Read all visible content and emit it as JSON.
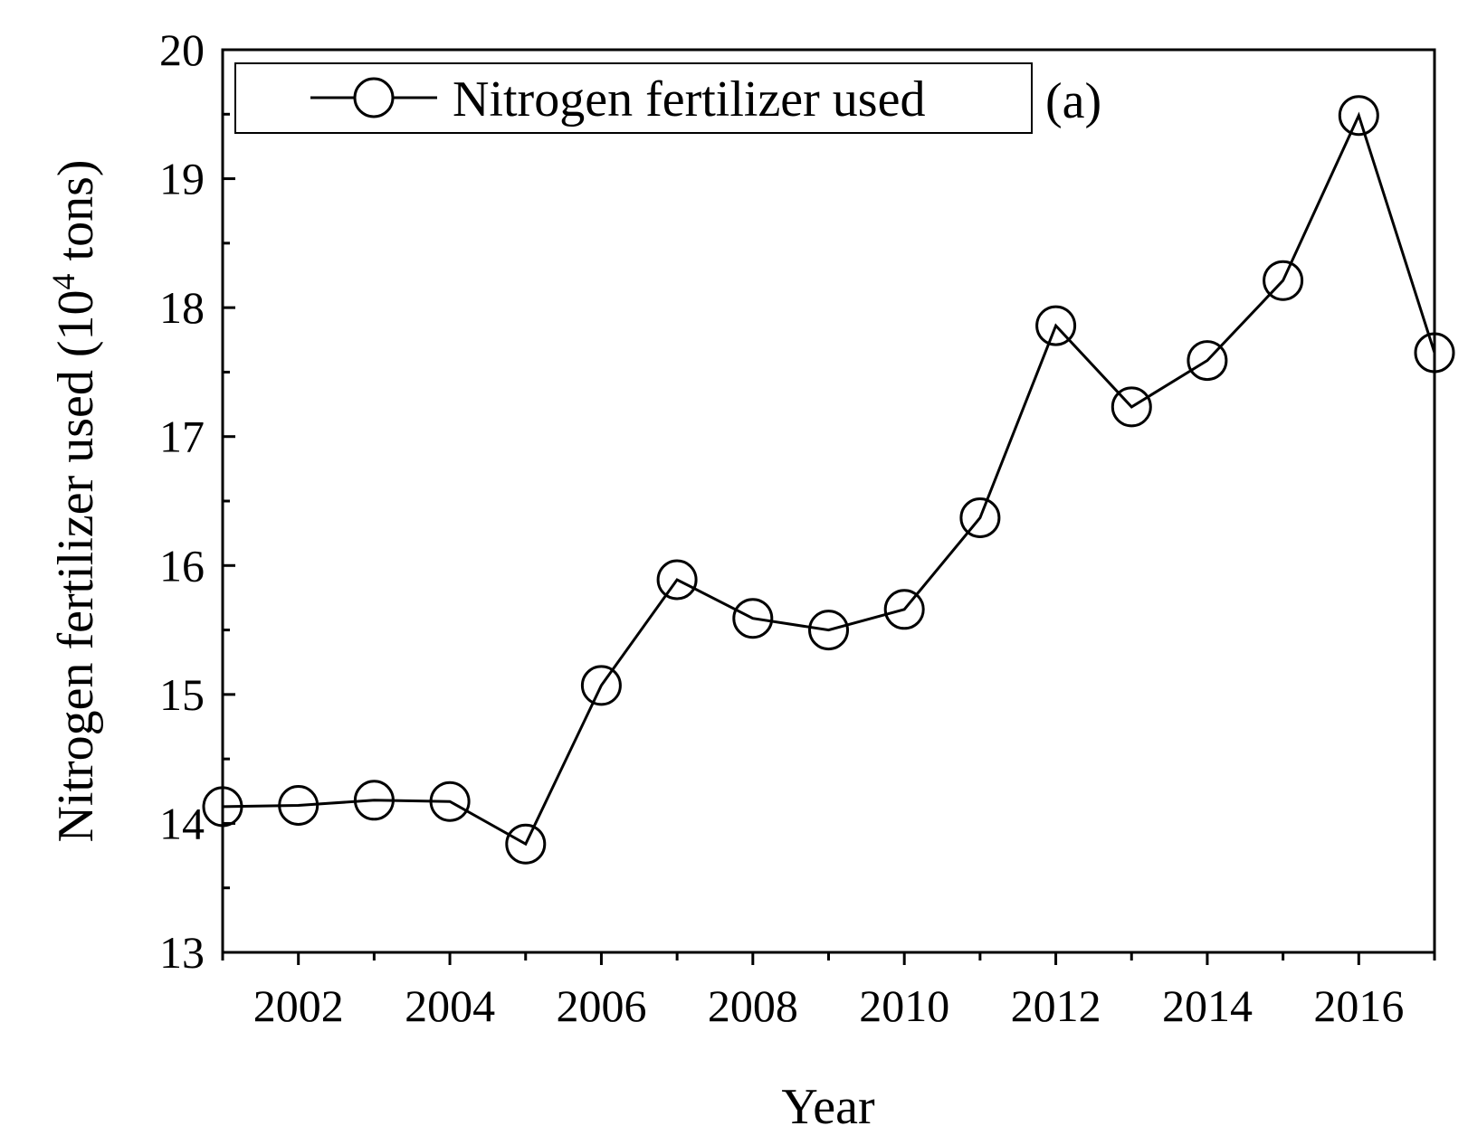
{
  "chart_data": {
    "type": "line",
    "x": [
      2001,
      2002,
      2003,
      2004,
      2005,
      2006,
      2007,
      2008,
      2009,
      2010,
      2011,
      2012,
      2013,
      2014,
      2015,
      2016,
      2017
    ],
    "series": [
      {
        "name": "Nitrogen  fertilizer used",
        "values": [
          14.13,
          14.14,
          14.18,
          14.17,
          13.84,
          15.07,
          15.89,
          15.59,
          15.5,
          15.66,
          16.37,
          17.86,
          17.23,
          17.59,
          18.21,
          19.49,
          17.65
        ],
        "color": "#000000",
        "marker": "open-circle"
      }
    ],
    "xlabel": "Year",
    "ylabel_main": "Nitrogen fertilizer used (10",
    "ylabel_sup": "4",
    "ylabel_tail": " tons)",
    "panel_label": "(a)",
    "xlim": [
      2001,
      2017
    ],
    "ylim": [
      13,
      20
    ],
    "x_ticks_labeled": [
      "2002",
      "2004",
      "2006",
      "2008",
      "2010",
      "2012",
      "2014",
      "2016"
    ],
    "y_ticks": [
      "13",
      "14",
      "15",
      "16",
      "17",
      "18",
      "19",
      "20"
    ],
    "legend": {
      "position": "top-left",
      "entries": [
        "Nitrogen  fertilizer used"
      ]
    },
    "grid": false
  }
}
